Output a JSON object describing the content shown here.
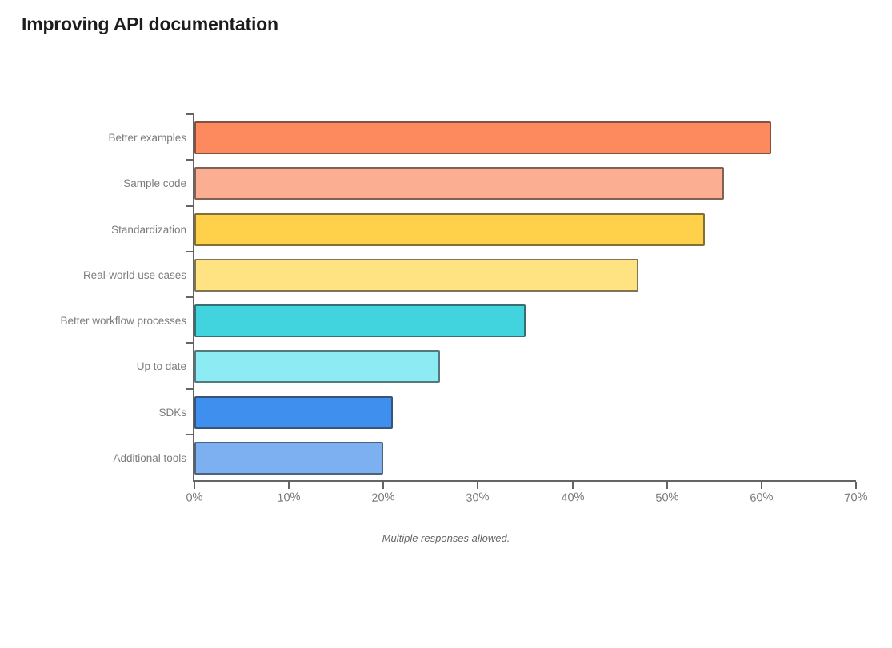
{
  "header": {
    "title": "Improving API documentation"
  },
  "chart_data": {
    "type": "bar",
    "orientation": "horizontal",
    "title": "Improving API documentation",
    "categories": [
      "Better examples",
      "Sample code",
      "Standardization",
      "Real-world use cases",
      "Better workflow processes",
      "Up to date",
      "SDKs",
      "Additional tools"
    ],
    "values": [
      61,
      56,
      54,
      47,
      35,
      26,
      21,
      20
    ],
    "unit": "%",
    "xlim": [
      0,
      70
    ],
    "x_tick_labels": [
      "0%",
      "10%",
      "20%",
      "30%",
      "40%",
      "50%",
      "60%",
      "70%"
    ],
    "bar_colors": [
      "#FC8A5E",
      "#FCAE92",
      "#FFD04A",
      "#FFE383",
      "#41D3DE",
      "#8CEBF3",
      "#3F8FEF",
      "#7DB0F0"
    ],
    "bar_border_color": "rgba(50,50,50,0.62)",
    "axis_color": "#646464",
    "category_label_color": "#7d7d7d",
    "tick_label_color": "#7a7a7a",
    "grid": false,
    "legend": "none",
    "note": "Multiple responses allowed."
  }
}
